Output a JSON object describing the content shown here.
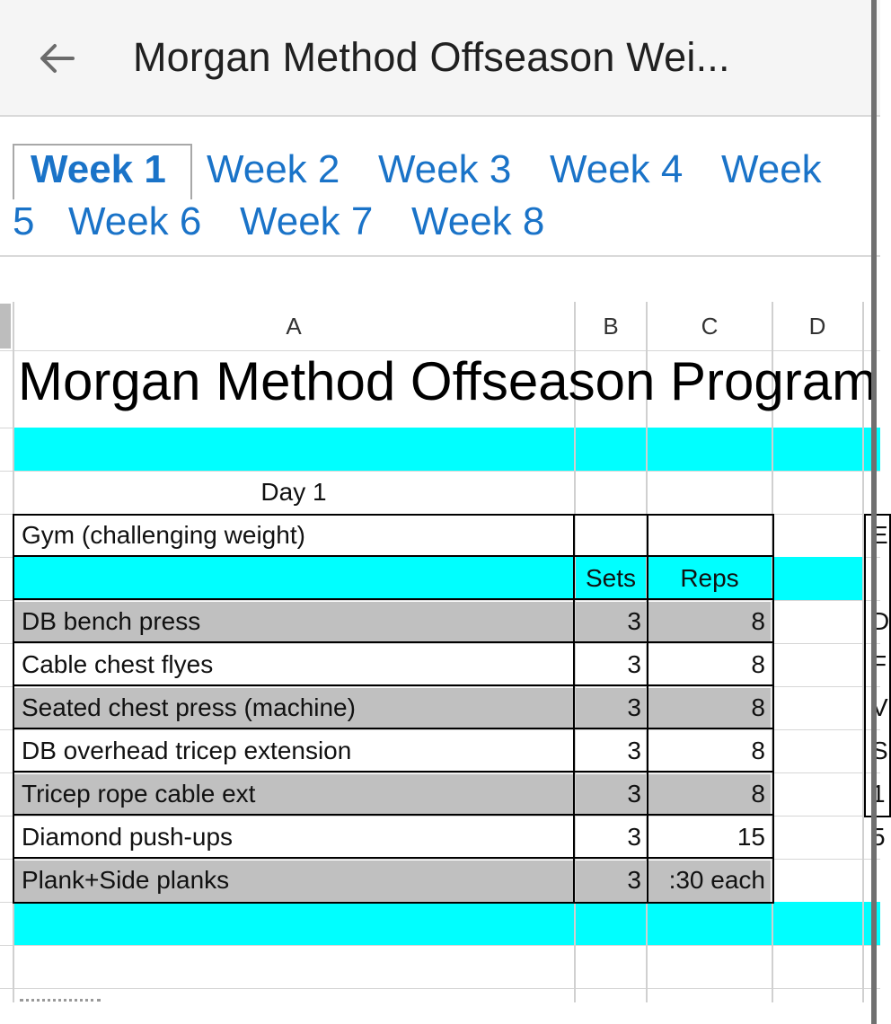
{
  "app": {
    "title": "Morgan Method Offseason Wei...",
    "back_icon": "arrow-left-icon"
  },
  "tabs": [
    {
      "label": "Week 1",
      "active": true
    },
    {
      "label": "Week 2"
    },
    {
      "label": "Week 3"
    },
    {
      "label": "Week 4"
    },
    {
      "label": "Week"
    },
    {
      "label": "5"
    },
    {
      "label": "Week 6"
    },
    {
      "label": "Week 7"
    },
    {
      "label": "Week 8"
    }
  ],
  "columns": [
    "A",
    "B",
    "C",
    "D"
  ],
  "sheet": {
    "title": "Morgan Method Offseason Program",
    "day_label": "Day 1",
    "section": "Gym (challenging weight)",
    "headers": {
      "sets": "Sets",
      "reps": "Reps"
    },
    "exercises": [
      {
        "name": "DB bench press",
        "sets": "3",
        "reps": "8",
        "shaded": true
      },
      {
        "name": "Cable chest flyes",
        "sets": "3",
        "reps": "8",
        "shaded": false
      },
      {
        "name": "Seated chest press (machine)",
        "sets": "3",
        "reps": "8",
        "shaded": true
      },
      {
        "name": "DB overhead tricep extension",
        "sets": "3",
        "reps": "8",
        "shaded": false
      },
      {
        "name": "Tricep rope cable ext",
        "sets": "3",
        "reps": "8",
        "shaded": true
      },
      {
        "name": "Diamond push-ups",
        "sets": "3",
        "reps": "15",
        "shaded": false
      },
      {
        "name": "Plank+Side planks",
        "sets": "3",
        "reps": ":30 each",
        "shaded": true
      }
    ],
    "right_edge_glyphs": [
      "E",
      "D",
      "F",
      "V",
      "S",
      "1",
      "5"
    ]
  },
  "colors": {
    "accent": "#1a73c8",
    "band": "#00ffff",
    "shade": "#c0c0c0"
  }
}
